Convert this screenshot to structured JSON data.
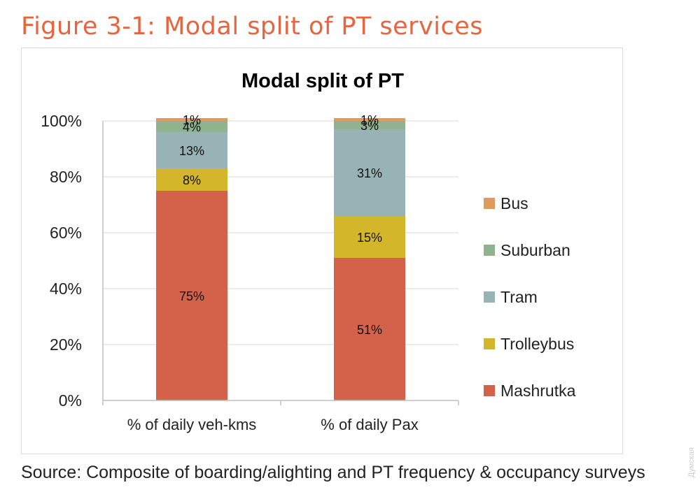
{
  "figure": {
    "heading": "Figure 3-1: Modal split of PT services",
    "source": "Source: Composite of boarding/alighting and PT frequency & occupancy surveys",
    "watermark": "Думская"
  },
  "chart_data": {
    "type": "bar",
    "stacked": true,
    "title": "Modal split of PT",
    "categories": [
      "% of daily veh-kms",
      "% of daily Pax"
    ],
    "series": [
      {
        "name": "Mashrutka",
        "values": [
          75,
          51
        ],
        "labels": [
          "75%",
          "51%"
        ],
        "color": "#d4624a"
      },
      {
        "name": "Trolleybus",
        "values": [
          8,
          15
        ],
        "labels": [
          "8%",
          "15%"
        ],
        "color": "#d4b62a"
      },
      {
        "name": "Tram",
        "values": [
          13,
          31
        ],
        "labels": [
          "13%",
          "31%"
        ],
        "color": "#97b3b5"
      },
      {
        "name": "Suburban",
        "values": [
          4,
          3
        ],
        "labels": [
          "4%",
          "3%"
        ],
        "color": "#8fb38e"
      },
      {
        "name": "Bus",
        "values": [
          1,
          1
        ],
        "labels": [
          "1%",
          "1%"
        ],
        "color": "#e09a5a"
      }
    ],
    "ylim": [
      0,
      100
    ],
    "yticks": [
      "0%",
      "20%",
      "40%",
      "60%",
      "80%",
      "100%"
    ],
    "grid": true,
    "legend_position": "right"
  }
}
